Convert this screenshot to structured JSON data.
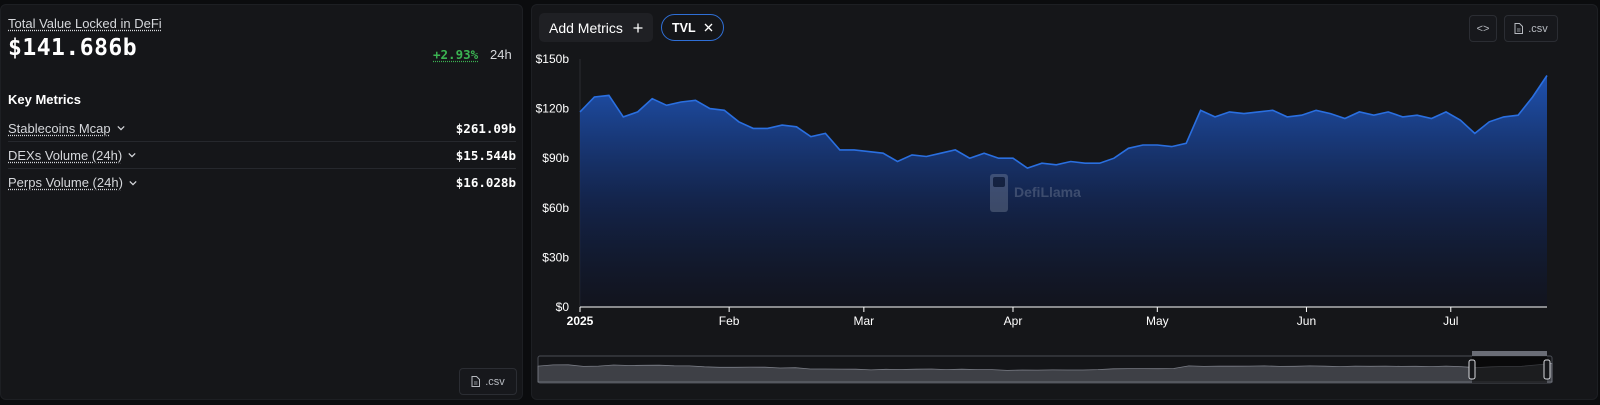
{
  "summary": {
    "label": "Total Value Locked in DeFi",
    "value": "$141.686b",
    "change": "+2.93%",
    "period": "24h"
  },
  "key_metrics": {
    "title": "Key Metrics",
    "items": [
      {
        "label": "Stablecoins Mcap",
        "value": "$261.09b"
      },
      {
        "label": "DEXs Volume (24h)",
        "value": "$15.544b"
      },
      {
        "label": "Perps Volume (24h)",
        "value": "$16.028b"
      }
    ]
  },
  "buttons": {
    "csv_label": ".csv",
    "add_metrics_label": "Add Metrics",
    "tvl_pill_label": "TVL",
    "embed_label": "<>"
  },
  "watermark": "DefiLlama",
  "colors": {
    "accent": "#2f6fd6",
    "positive": "#3bb352",
    "line": "#2a6fe0"
  },
  "chart_data": {
    "type": "area",
    "series": [
      {
        "name": "TVL",
        "x": [
          "2025-01-01",
          "2025-01-04",
          "2025-01-07",
          "2025-01-10",
          "2025-01-13",
          "2025-01-16",
          "2025-01-19",
          "2025-01-22",
          "2025-01-25",
          "2025-01-28",
          "2025-01-31",
          "2025-02-03",
          "2025-02-06",
          "2025-02-09",
          "2025-02-12",
          "2025-02-15",
          "2025-02-18",
          "2025-02-21",
          "2025-02-24",
          "2025-02-27",
          "2025-03-02",
          "2025-03-05",
          "2025-03-08",
          "2025-03-11",
          "2025-03-14",
          "2025-03-17",
          "2025-03-20",
          "2025-03-23",
          "2025-03-26",
          "2025-03-29",
          "2025-04-01",
          "2025-04-04",
          "2025-04-07",
          "2025-04-10",
          "2025-04-13",
          "2025-04-16",
          "2025-04-19",
          "2025-04-22",
          "2025-04-25",
          "2025-04-28",
          "2025-05-01",
          "2025-05-04",
          "2025-05-07",
          "2025-05-10",
          "2025-05-13",
          "2025-05-16",
          "2025-05-19",
          "2025-05-22",
          "2025-05-25",
          "2025-05-28",
          "2025-05-31",
          "2025-06-03",
          "2025-06-06",
          "2025-06-09",
          "2025-06-12",
          "2025-06-15",
          "2025-06-18",
          "2025-06-21",
          "2025-06-24",
          "2025-06-27",
          "2025-06-30",
          "2025-07-03",
          "2025-07-06",
          "2025-07-09",
          "2025-07-12",
          "2025-07-15",
          "2025-07-18",
          "2025-07-21"
        ],
        "values": [
          118,
          127,
          128,
          115,
          118,
          126,
          122,
          124,
          125,
          120,
          119,
          112,
          108,
          108,
          110,
          109,
          103,
          105,
          95,
          95,
          94,
          93,
          88,
          92,
          91,
          93,
          95,
          90,
          93,
          90,
          90,
          84,
          87,
          86,
          88,
          87,
          87,
          90,
          96,
          98,
          98,
          97,
          99,
          119,
          115,
          118,
          117,
          118,
          119,
          115,
          116,
          119,
          117,
          114,
          118,
          116,
          118,
          115,
          116,
          114,
          118,
          113,
          105,
          112,
          115,
          116,
          127,
          140
        ]
      }
    ],
    "x_ticks": [
      "2025",
      "Feb",
      "Mar",
      "Apr",
      "May",
      "Jun",
      "Jul"
    ],
    "y_ticks": [
      "$0",
      "$30b",
      "$60b",
      "$90b",
      "$120b",
      "$150b"
    ],
    "ylim": [
      0,
      150
    ],
    "grid": false,
    "legend": "none"
  }
}
